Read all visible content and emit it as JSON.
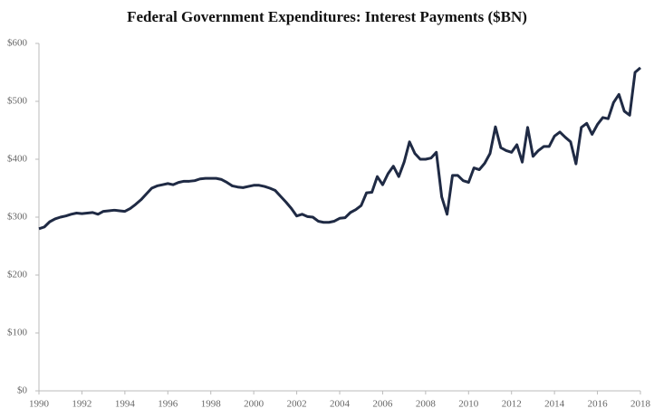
{
  "chart_data": {
    "type": "line",
    "title": "Federal Government Expenditures: Interest Payments ($BN)",
    "x": [
      1990,
      1990.25,
      1990.5,
      1990.75,
      1991,
      1991.25,
      1991.5,
      1991.75,
      1992,
      1992.25,
      1992.5,
      1992.75,
      1993,
      1993.25,
      1993.5,
      1993.75,
      1994,
      1994.25,
      1994.5,
      1994.75,
      1995,
      1995.25,
      1995.5,
      1995.75,
      1996,
      1996.25,
      1996.5,
      1996.75,
      1997,
      1997.25,
      1997.5,
      1997.75,
      1998,
      1998.25,
      1998.5,
      1998.75,
      1999,
      1999.25,
      1999.5,
      1999.75,
      2000,
      2000.25,
      2000.5,
      2000.75,
      2001,
      2001.25,
      2001.5,
      2001.75,
      2002,
      2002.25,
      2002.5,
      2002.75,
      2003,
      2003.25,
      2003.5,
      2003.75,
      2004,
      2004.25,
      2004.5,
      2004.75,
      2005,
      2005.25,
      2005.5,
      2005.75,
      2006,
      2006.25,
      2006.5,
      2006.75,
      2007,
      2007.25,
      2007.5,
      2007.75,
      2008,
      2008.25,
      2008.5,
      2008.75,
      2009,
      2009.25,
      2009.5,
      2009.75,
      2010,
      2010.25,
      2010.5,
      2010.75,
      2011,
      2011.25,
      2011.5,
      2011.75,
      2012,
      2012.25,
      2012.5,
      2012.75,
      2013,
      2013.25,
      2013.5,
      2013.75,
      2014,
      2014.25,
      2014.5,
      2014.75,
      2015,
      2015.25,
      2015.5,
      2015.75,
      2016,
      2016.25,
      2016.5,
      2016.75,
      2017,
      2017.25,
      2017.5,
      2017.75,
      2018
    ],
    "series": [
      {
        "color": "#1f2a44",
        "values": [
          280,
          283,
          292,
          297,
          300,
          302,
          305,
          307,
          306,
          307,
          308,
          305,
          310,
          311,
          312,
          311,
          310,
          315,
          322,
          330,
          340,
          350,
          354,
          356,
          358,
          356,
          360,
          362,
          362,
          363,
          366,
          367,
          367,
          367,
          365,
          360,
          354,
          352,
          351,
          353,
          355,
          355,
          353,
          350,
          346,
          336,
          326,
          315,
          302,
          305,
          301,
          300,
          293,
          291,
          291,
          293,
          298,
          299,
          308,
          313,
          320,
          342,
          343,
          370,
          356,
          375,
          388,
          370,
          395,
          430,
          410,
          400,
          400,
          402,
          412,
          335,
          305,
          372,
          372,
          363,
          360,
          385,
          382,
          393,
          410,
          456,
          420,
          415,
          412,
          425,
          395,
          455,
          405,
          415,
          422,
          422,
          440,
          447,
          438,
          430,
          392,
          455,
          462,
          443,
          460,
          472,
          470,
          498,
          512,
          483,
          476,
          550,
          558
        ]
      }
    ],
    "xlim": [
      1990,
      2018
    ],
    "xticks": [
      1990,
      1992,
      1994,
      1996,
      1998,
      2000,
      2002,
      2004,
      2006,
      2008,
      2010,
      2012,
      2014,
      2016,
      2018
    ],
    "ylim": [
      0,
      600
    ],
    "yticks": [
      {
        "value": 0,
        "label": "$0"
      },
      {
        "value": 100,
        "label": "$100"
      },
      {
        "value": 200,
        "label": "$200"
      },
      {
        "value": 300,
        "label": "$300"
      },
      {
        "value": 400,
        "label": "$400"
      },
      {
        "value": 500,
        "label": "$500"
      },
      {
        "value": 600,
        "label": "$600"
      }
    ],
    "grid": false
  }
}
